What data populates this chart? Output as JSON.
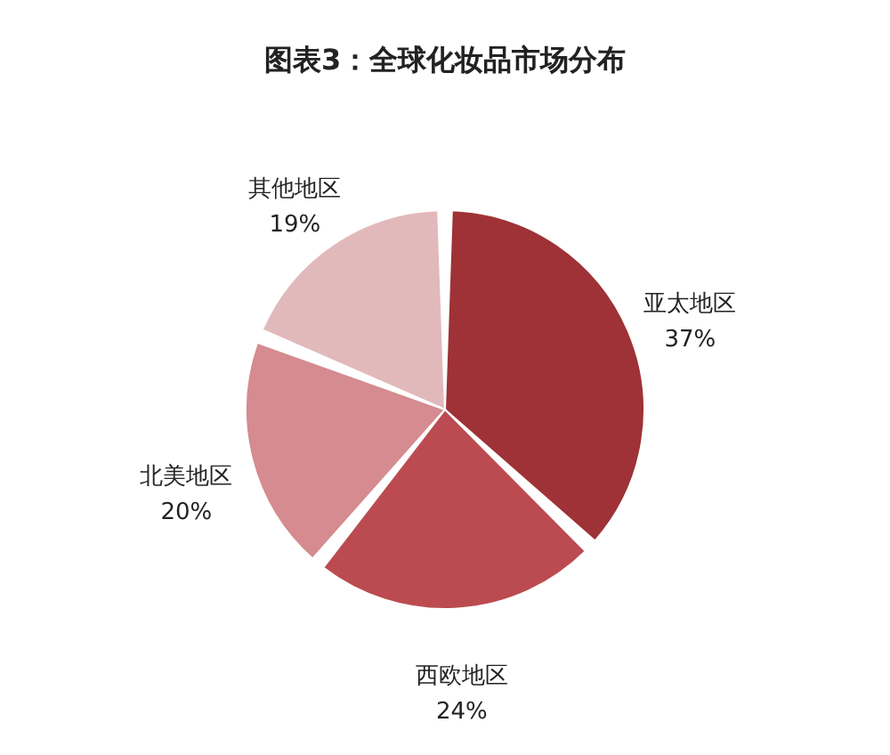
{
  "chart_data": {
    "type": "pie",
    "title": "图表3：全球化妆品市场分布",
    "categories": [
      "亚太地区",
      "西欧地区",
      "北美地区",
      "其他地区"
    ],
    "values": [
      37,
      24,
      20,
      19
    ],
    "value_labels": [
      "37%",
      "24%",
      "20%",
      "19%"
    ],
    "colors": [
      "#9e3236",
      "#bb4b50",
      "#d58b8f",
      "#e2b9bb"
    ],
    "legend": false
  }
}
